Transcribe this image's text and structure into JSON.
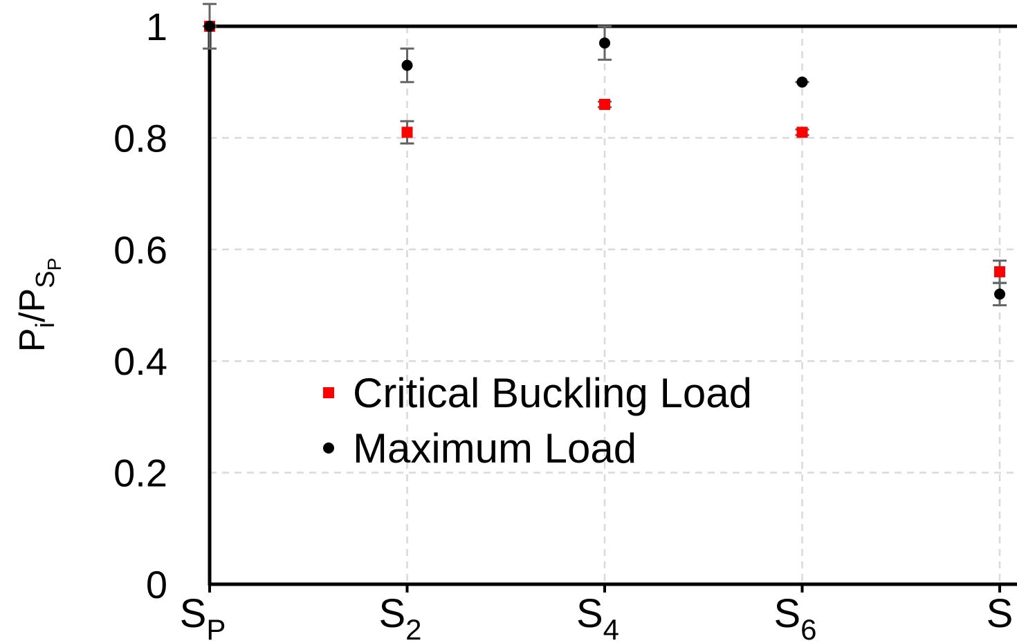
{
  "chart_data": {
    "type": "scatter",
    "ylabel": {
      "base": "P",
      "sub": "i",
      "sep": "/P",
      "sub2": "S",
      "sub3": "P"
    },
    "categories": [
      {
        "main": "S",
        "sub": "P"
      },
      {
        "main": "S",
        "sub": "2"
      },
      {
        "main": "S",
        "sub": "4"
      },
      {
        "main": "S",
        "sub": "6"
      },
      {
        "main": "S"
      }
    ],
    "series": [
      {
        "name": "Critical Buckling Load",
        "color": "#ff0000",
        "marker": "square",
        "values": [
          1.0,
          0.81,
          0.86,
          0.81,
          0.56
        ],
        "errors": [
          0.0,
          0.02,
          0.005,
          0.005,
          0.02
        ]
      },
      {
        "name": "Maximum Load",
        "color": "#000000",
        "marker": "circle",
        "values": [
          1.0,
          0.93,
          0.97,
          0.9,
          0.52
        ],
        "errors": [
          0.04,
          0.03,
          0.03,
          0.0,
          0.02
        ]
      }
    ],
    "ylim": [
      0,
      1
    ],
    "yticks": [
      0,
      0.2,
      0.4,
      0.6,
      0.8,
      1
    ],
    "grid": true,
    "legend": "center"
  }
}
